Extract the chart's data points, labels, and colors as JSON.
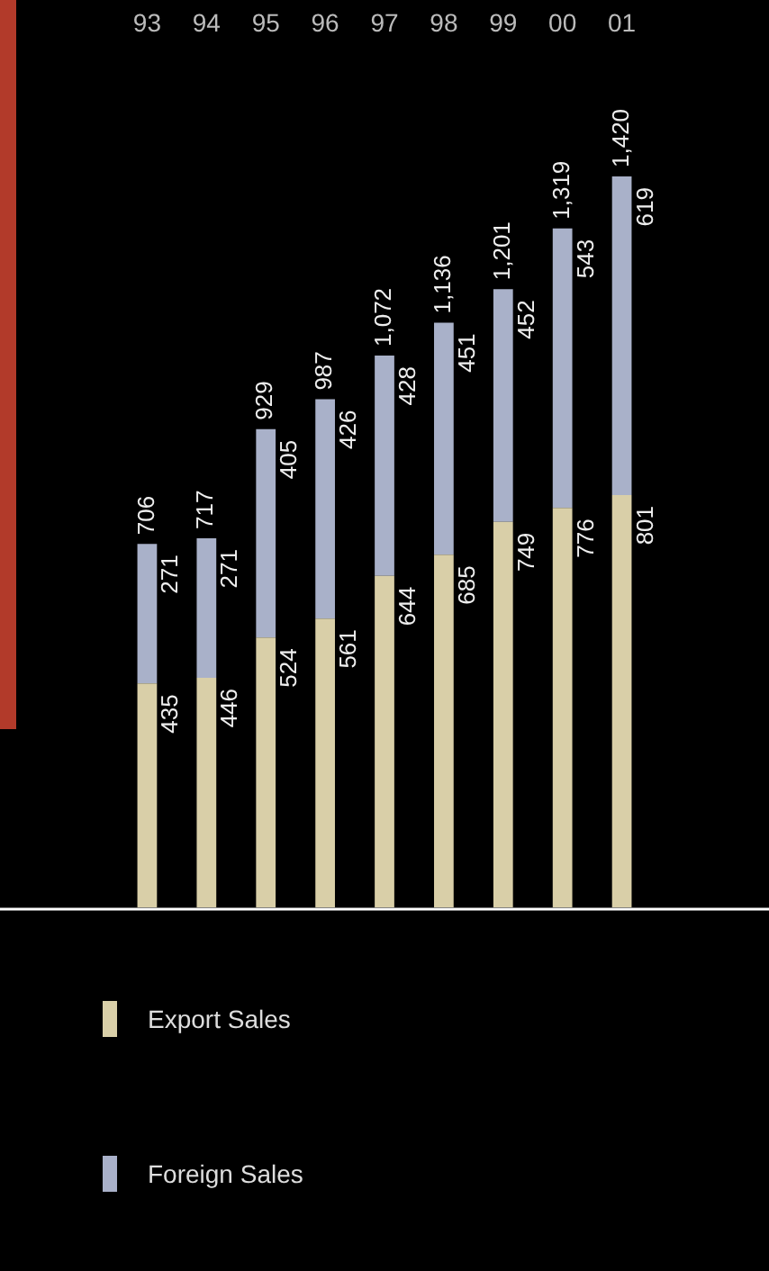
{
  "chart_data": {
    "type": "bar",
    "stacked": true,
    "data_labels": true,
    "legend": "bottom left",
    "categories": [
      "93",
      "94",
      "95",
      "96",
      "97",
      "98",
      "99",
      "00",
      "01"
    ],
    "series": [
      {
        "name": "Export Sales",
        "color": "#d9cfa8",
        "values": [
          435,
          446,
          524,
          561,
          644,
          685,
          749,
          776,
          801
        ]
      },
      {
        "name": "Foreign Sales",
        "color": "#a9b1c9",
        "values": [
          271,
          271,
          405,
          426,
          428,
          451,
          452,
          543,
          619
        ]
      }
    ],
    "totals": [
      "706",
      "717",
      "929",
      "987",
      "1,072",
      "1,136",
      "1,201",
      "1,319",
      "1,420"
    ]
  }
}
